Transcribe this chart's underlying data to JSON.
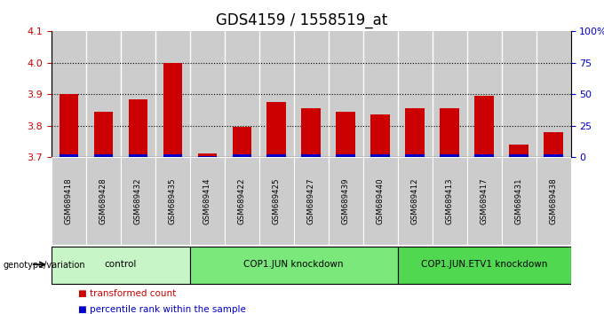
{
  "title": "GDS4159 / 1558519_at",
  "samples": [
    "GSM689418",
    "GSM689428",
    "GSM689432",
    "GSM689435",
    "GSM689414",
    "GSM689422",
    "GSM689425",
    "GSM689427",
    "GSM689439",
    "GSM689440",
    "GSM689412",
    "GSM689413",
    "GSM689417",
    "GSM689431",
    "GSM689438"
  ],
  "red_values": [
    3.9,
    3.845,
    3.885,
    4.0,
    3.71,
    3.795,
    3.875,
    3.855,
    3.845,
    3.835,
    3.855,
    3.855,
    3.895,
    3.74,
    3.78
  ],
  "blue_values": [
    0.008,
    0.008,
    0.008,
    0.008,
    0.003,
    0.008,
    0.008,
    0.008,
    0.008,
    0.008,
    0.008,
    0.008,
    0.008,
    0.008,
    0.008
  ],
  "ylim_left": [
    3.7,
    4.1
  ],
  "ylim_right": [
    0,
    100
  ],
  "yticks_left": [
    3.7,
    3.8,
    3.9,
    4.0,
    4.1
  ],
  "yticks_right": [
    0,
    25,
    50,
    75,
    100
  ],
  "ytick_labels_right": [
    "0",
    "25",
    "50",
    "75",
    "100%"
  ],
  "groups": [
    {
      "label": "control",
      "start": 0,
      "end": 4,
      "color": "#c8f5c8"
    },
    {
      "label": "COP1.JUN knockdown",
      "start": 4,
      "end": 10,
      "color": "#7ae87a"
    },
    {
      "label": "COP1.JUN.ETV1 knockdown",
      "start": 10,
      "end": 15,
      "color": "#50d850"
    }
  ],
  "bar_color_red": "#cc0000",
  "bar_color_blue": "#0000cc",
  "bar_width": 0.55,
  "ylabel_left_color": "#cc0000",
  "ylabel_right_color": "#0000cc",
  "legend_items": [
    {
      "label": "transformed count",
      "color": "#cc0000"
    },
    {
      "label": "percentile rank within the sample",
      "color": "#0000cc"
    }
  ],
  "baseline": 3.7,
  "grid_dotted_values": [
    3.8,
    3.9,
    4.0
  ],
  "sample_box_color": "#cccccc",
  "title_fontsize": 12,
  "tick_fontsize": 8,
  "sample_label_fontsize": 6.2
}
